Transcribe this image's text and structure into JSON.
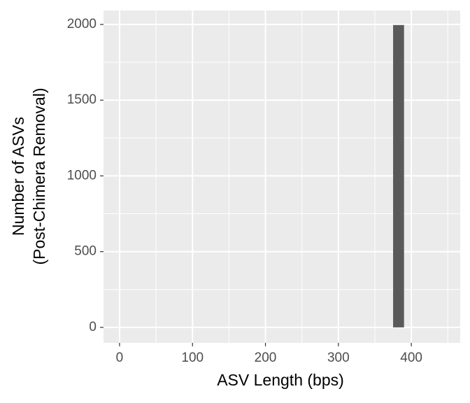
{
  "chart_data": {
    "type": "histogram",
    "x_label": "ASV Length (bps)",
    "y_label": [
      "Number of ASVs",
      "(Post-Chimera Removal)"
    ],
    "bins": [
      375,
      390
    ],
    "values": [
      1996
    ],
    "color": "#595959",
    "xlim": [
      -22,
      467
    ],
    "xticks": [
      0,
      100,
      200,
      300,
      400
    ],
    "xminor": [
      50,
      150,
      250,
      350,
      450
    ],
    "ylim": [
      -102,
      2092
    ],
    "yticks": [
      0,
      500,
      1000,
      1500,
      2000
    ],
    "yminor": [
      250,
      750,
      1250,
      1750
    ],
    "grid": true
  }
}
